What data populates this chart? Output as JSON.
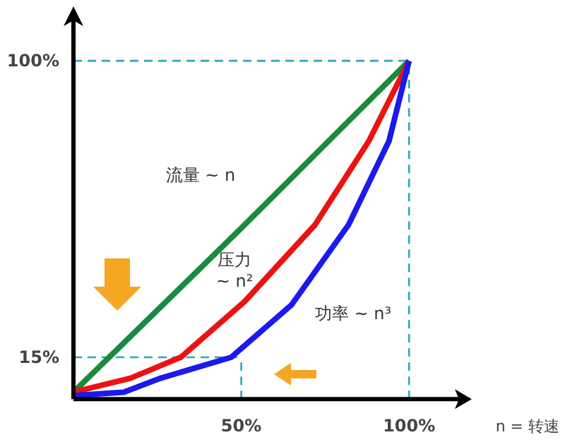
{
  "chart_data": {
    "type": "line",
    "xlabel": "n = 转速",
    "xlim": [
      0,
      117
    ],
    "ylim": [
      3,
      114
    ],
    "xticks": [
      {
        "value": 50,
        "label": "50%"
      },
      {
        "value": 100,
        "label": "100%"
      }
    ],
    "yticks": [
      {
        "value": 15,
        "label": "15%"
      },
      {
        "value": 100,
        "label": "100%"
      }
    ],
    "marker": "none",
    "line_style": "solid",
    "series": [
      {
        "color": "#1a8a3c",
        "x": [
          0,
          50,
          100
        ],
        "values": [
          5,
          52,
          100
        ]
      },
      {
        "color": "#ee1111",
        "x": [
          0,
          17,
          32,
          51,
          72,
          88,
          100
        ],
        "values": [
          5,
          9,
          15,
          31,
          53,
          77,
          100
        ]
      },
      {
        "color": "#1a1aee",
        "x": [
          0,
          15,
          26,
          47,
          65,
          82,
          94,
          100
        ],
        "values": [
          4,
          5,
          9,
          15,
          30,
          53,
          77,
          100
        ]
      }
    ],
    "ref_lines": [
      {
        "axis": "y",
        "value": 100,
        "color": "#2aa6c0",
        "line_style": "dashed"
      },
      {
        "axis": "x",
        "value": 100,
        "color": "#2aa6c0",
        "line_style": "dashed"
      },
      {
        "axis": "y",
        "value": 15,
        "color": "#2aa6c0",
        "line_style": "dashed"
      },
      {
        "axis": "x",
        "value": 50,
        "color": "#2aa6c0",
        "line_style": "dashed"
      }
    ],
    "annotations": [
      "流量 ~ n",
      "压力\n~ n²",
      "功率 ~ n³"
    ]
  }
}
